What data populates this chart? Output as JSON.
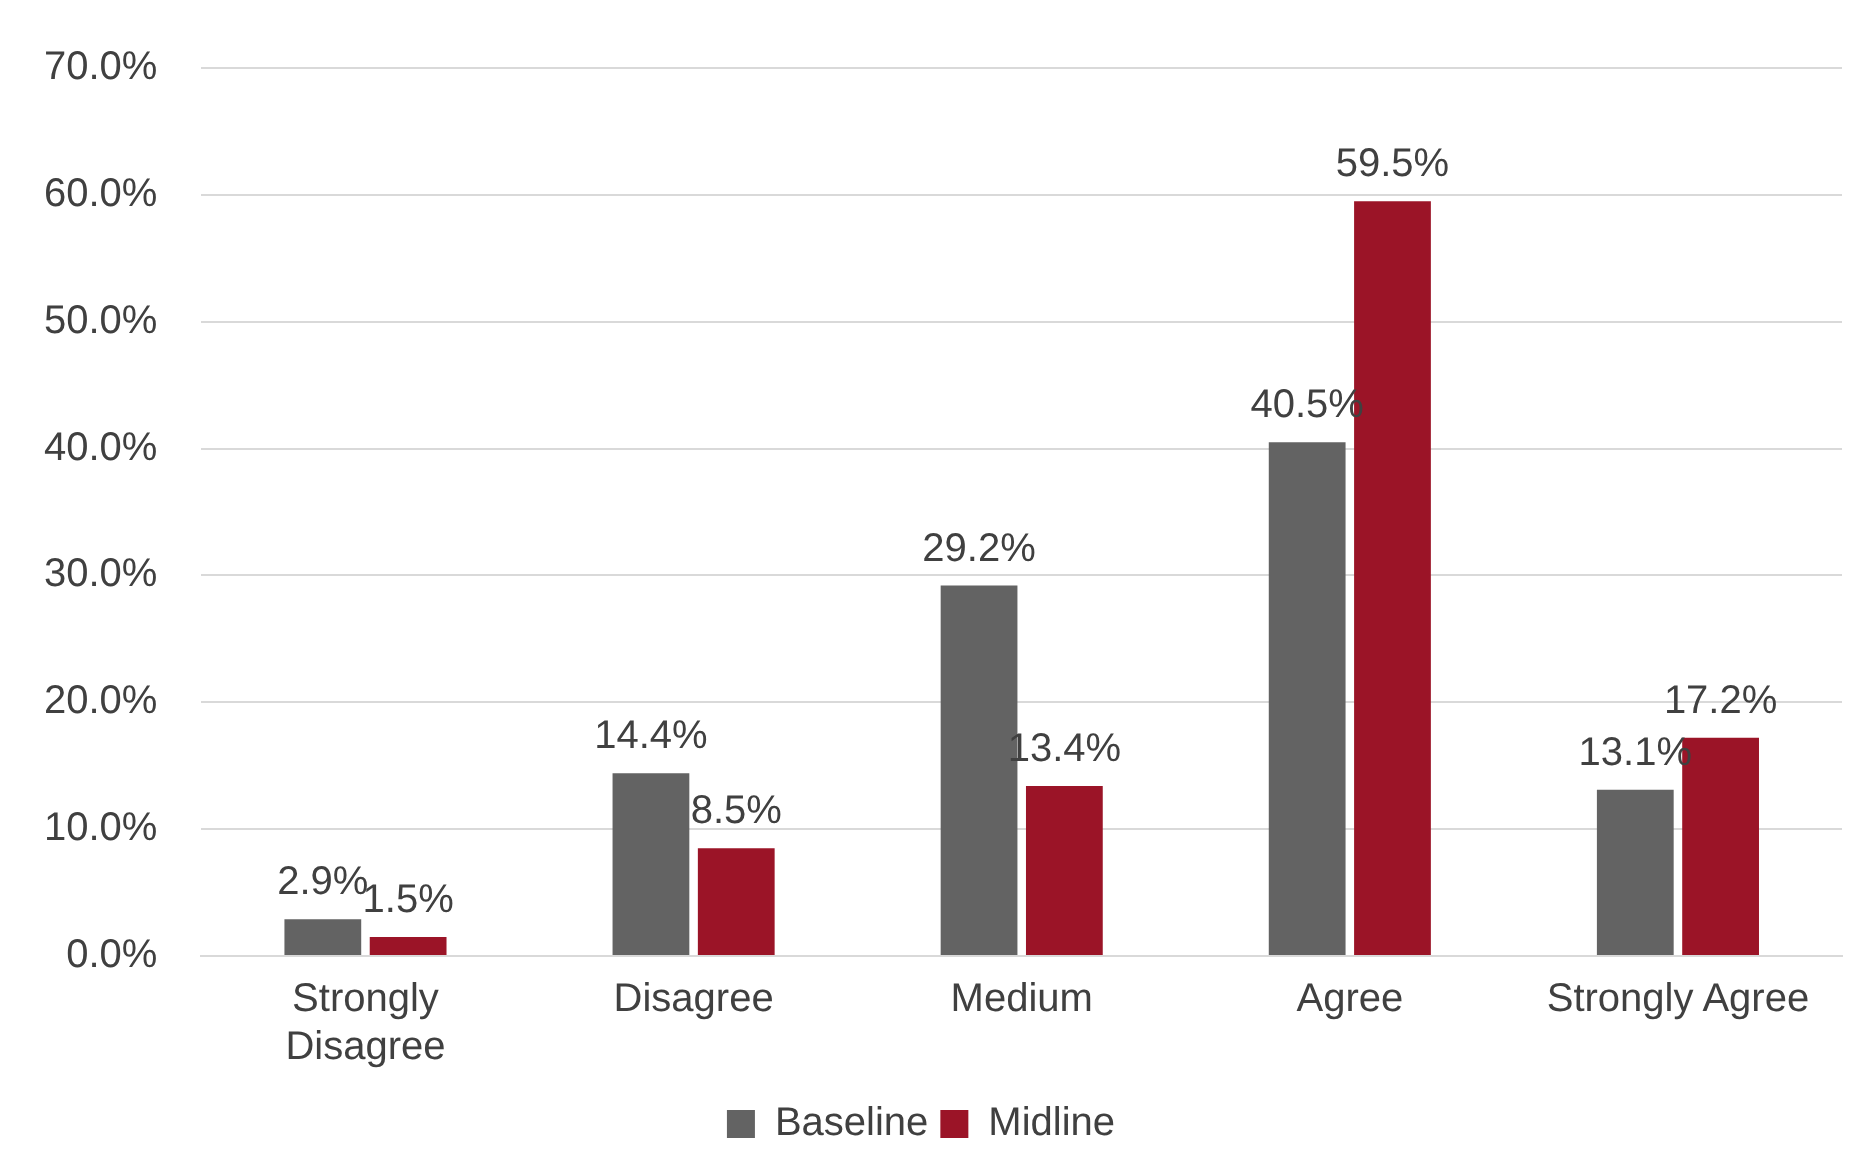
{
  "chart_data": {
    "type": "bar",
    "categories": [
      "Strongly Disagree",
      "Disagree",
      "Medium",
      "Agree",
      "Strongly Agree"
    ],
    "series": [
      {
        "name": "Baseline",
        "color": "#636363",
        "values": [
          2.9,
          14.4,
          29.2,
          40.5,
          13.1
        ],
        "value_labels": [
          "2.9%",
          "14.4%",
          "29.2%",
          "40.5%",
          "13.1%"
        ]
      },
      {
        "name": "Midline",
        "color": "#9b1427",
        "values": [
          1.5,
          8.5,
          13.4,
          59.5,
          17.2
        ],
        "value_labels": [
          "1.5%",
          "8.5%",
          "13.4%",
          "59.5%",
          "17.2%"
        ]
      }
    ],
    "ylim": [
      0,
      70
    ],
    "yticks": [
      {
        "value": 0,
        "label": "0.0%"
      },
      {
        "value": 10,
        "label": "10.0%"
      },
      {
        "value": 20,
        "label": "20.0%"
      },
      {
        "value": 30,
        "label": "30.0%"
      },
      {
        "value": 40,
        "label": "40.0%"
      },
      {
        "value": 50,
        "label": "50.0%"
      },
      {
        "value": 60,
        "label": "60.0%"
      },
      {
        "value": 70,
        "label": "70.0%"
      }
    ],
    "grid": "y",
    "legend": "bottom"
  }
}
